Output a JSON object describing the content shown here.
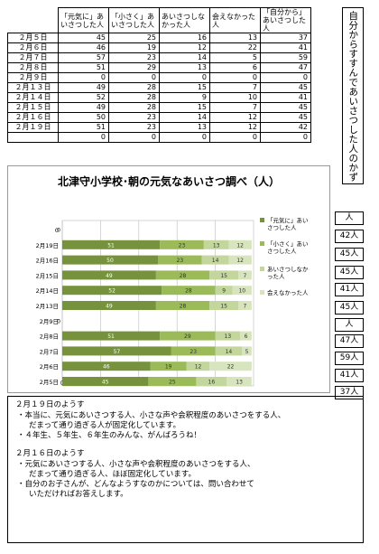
{
  "table": {
    "headers": [
      "「元気に」あいさつした人",
      "「小さく」あいさつした人",
      "あいさつしなかった人",
      "会えなかった人",
      "「自分から」あいさつした人"
    ],
    "rows": [
      {
        "date": "２月５日",
        "values": [
          "45",
          "25",
          "16",
          "13",
          "37"
        ]
      },
      {
        "date": "２月６日",
        "values": [
          "46",
          "19",
          "12",
          "22",
          "41"
        ]
      },
      {
        "date": "２月７日",
        "values": [
          "57",
          "23",
          "14",
          "5",
          "59"
        ]
      },
      {
        "date": "２月８日",
        "values": [
          "51",
          "29",
          "13",
          "6",
          "47"
        ]
      },
      {
        "date": "２月９日",
        "values": [
          "0",
          "0",
          "0",
          "0",
          "0"
        ]
      },
      {
        "date": "２月１３日",
        "values": [
          "49",
          "28",
          "15",
          "7",
          "45"
        ]
      },
      {
        "date": "２月１４日",
        "values": [
          "52",
          "28",
          "9",
          "10",
          "41"
        ]
      },
      {
        "date": "２月１５日",
        "values": [
          "49",
          "28",
          "15",
          "7",
          "45"
        ]
      },
      {
        "date": "２月１６日",
        "values": [
          "50",
          "23",
          "14",
          "12",
          "45"
        ]
      },
      {
        "date": "２月１９日",
        "values": [
          "51",
          "23",
          "13",
          "12",
          "42"
        ]
      },
      {
        "date": "",
        "values": [
          "0",
          "0",
          "0",
          "0",
          "0"
        ]
      }
    ]
  },
  "side_caption": "自分からすすんであいさつした人のかず",
  "chart_data": {
    "type": "bar",
    "orientation": "horizontal",
    "stacked": true,
    "title": "北津守小学校･朝の元気なあいさつ調べ（人）",
    "categories": [
      "２月５日",
      "２月６日",
      "２月７日",
      "２月８日",
      "２月９日",
      "２月１３日",
      "２月１４日",
      "２月１５日",
      "２月１６日",
      "２月１９日",
      ""
    ],
    "category_labels": [
      "2月5日",
      "2月6日",
      "2月7日",
      "2月8日",
      "2月9日",
      "2月13日",
      "2月14日",
      "2月15日",
      "2月16日",
      "2月19日",
      "0"
    ],
    "series": [
      {
        "name": "「元気に」あいさつした人",
        "values": [
          45,
          46,
          57,
          51,
          0,
          49,
          52,
          49,
          50,
          51,
          0
        ],
        "color": "#76923c"
      },
      {
        "name": "「小さく」あいさつした人",
        "values": [
          25,
          19,
          23,
          29,
          0,
          28,
          28,
          28,
          23,
          23,
          0
        ],
        "color": "#9bbb59"
      },
      {
        "name": "あいさつしなかった人",
        "values": [
          16,
          12,
          14,
          13,
          0,
          15,
          9,
          15,
          14,
          13,
          0
        ],
        "color": "#c3d69b"
      },
      {
        "name": "会えなかった人",
        "values": [
          13,
          22,
          5,
          6,
          0,
          7,
          10,
          7,
          12,
          12,
          0
        ],
        "color": "#d7e4bd"
      }
    ],
    "xticks": [
      "0",
      "20",
      "40",
      "60",
      "80"
    ],
    "xlim": [
      0,
      100
    ],
    "grid": true,
    "legend": "right"
  },
  "counts": [
    "人",
    "42人",
    "45人",
    "45人",
    "41人",
    "45人",
    "人",
    "47人",
    "59人",
    "41人",
    "37人"
  ],
  "notes": {
    "s1_head": "２月１９日のようす",
    "s1_b1a": "・本当に、元気にあいさつする人、小さな声や会釈程度のあいさつをする人、",
    "s1_b1b": "だまって通り過ぎる人が固定化しています。",
    "s1_b2": "・４年生、５年生、６年生のみんな、がんばろうね！",
    "s2_head": "２月１６日のようす",
    "s2_b1a": "・元気にあいさつする人、小さな声や会釈程度のあいさつをする人、",
    "s2_b1b": "だまって通り過ぎる人、ほぼ固定化しています。",
    "s2_b2a": "・自分のお子さんが、どんなようすなのかについては、問い合わせて",
    "s2_b2b": "いただければお答えします。"
  }
}
